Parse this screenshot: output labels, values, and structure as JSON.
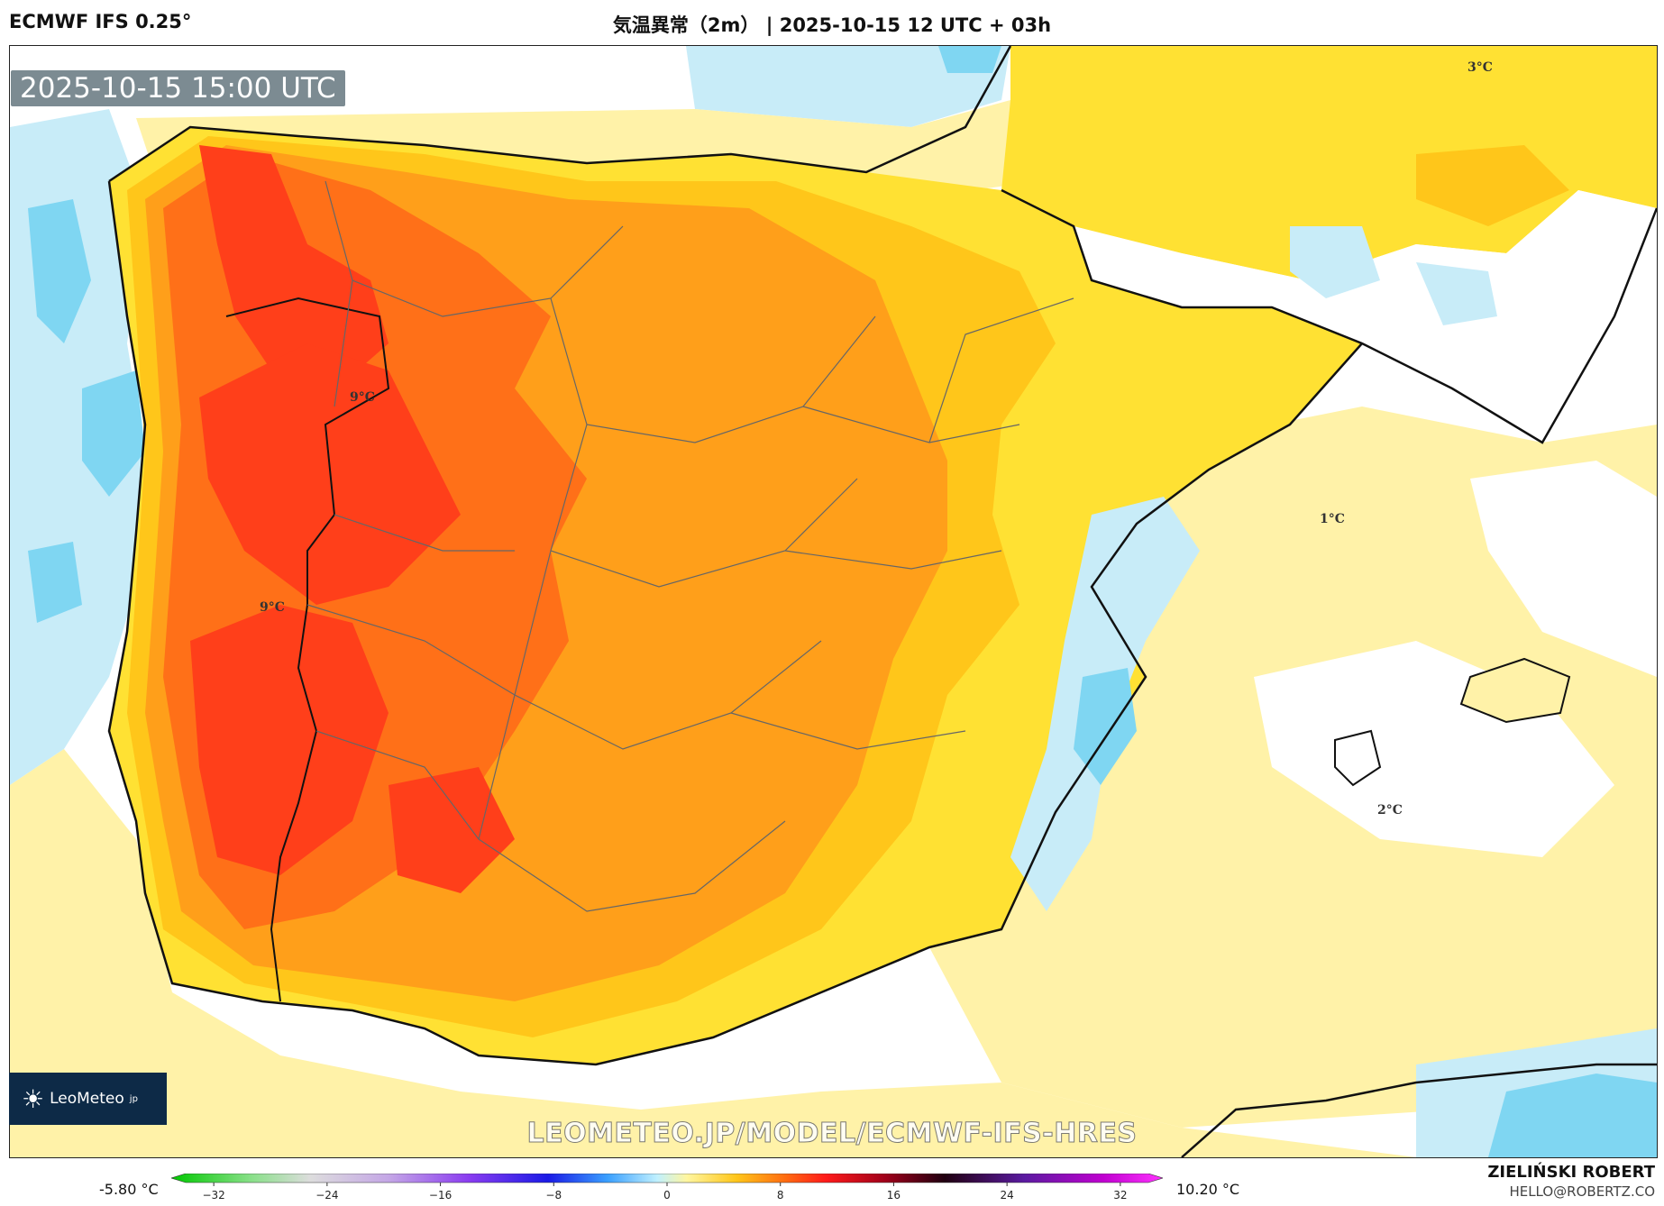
{
  "header": {
    "model": "ECMWF IFS 0.25°",
    "title": "気温異常（2m） | 2025-10-15 12 UTC + 03h"
  },
  "map": {
    "valid_time": "2025-10-15 15:00 UTC",
    "contour_labels": [
      "3°C",
      "9°C",
      "9°C",
      "1°C",
      "2°C"
    ],
    "logo_text": "LeoMeteo",
    "logo_suffix": "jp",
    "watermark": "LEOMETEO.JP/MODEL/ECMWF-IFS-HRES",
    "colors": {
      "sea": "#ffffff",
      "anom_neg_strong": "#7fd6f2",
      "anom_neg": "#c8ecf8",
      "anom_pos_weak": "#fff2a8",
      "anom_pos_1": "#ffe133",
      "anom_pos_3": "#ffc61a",
      "anom_pos_5": "#ff9f1a",
      "anom_pos_7": "#ff7018",
      "anom_pos_9": "#ff3f1a",
      "coast": "#111111",
      "borders": "#555555"
    }
  },
  "colorbar": {
    "min_label": "-5.80 °C",
    "max_label": "10.20 °C",
    "ticks": [
      "−32",
      "−24",
      "−16",
      "−8",
      "0",
      "8",
      "16",
      "24",
      "32"
    ],
    "tick_values": [
      -32,
      -24,
      -16,
      -8,
      0,
      8,
      16,
      24,
      32
    ],
    "range": [
      -35,
      35
    ]
  },
  "author": {
    "name": "ZIELIŃSKI ROBERT",
    "email": "HELLO@ROBERTZ.CO"
  }
}
